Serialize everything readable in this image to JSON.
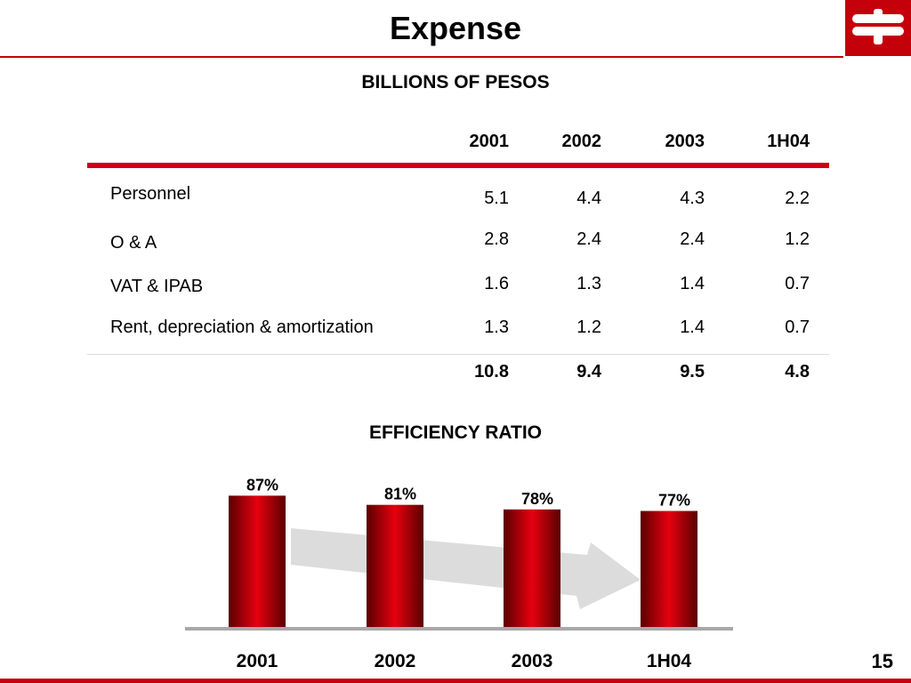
{
  "title": "Expense",
  "page_number": "15",
  "colors": {
    "brand_red": "#c4000b",
    "bar_dark": "#5a0000",
    "bar_light": "#e6000f",
    "arrow": "#dcdcdc"
  },
  "logo": {
    "icon": "bank-logo-icon"
  },
  "table": {
    "subtitle": "BILLIONS OF PESOS",
    "columns": [
      "2001",
      "2002",
      "2003",
      "1H04"
    ],
    "rows": [
      {
        "label": "Personnel",
        "values": [
          "5.1",
          "4.4",
          "4.3",
          "2.2"
        ]
      },
      {
        "label": "O & A",
        "values": [
          "2.8",
          "2.4",
          "2.4",
          "1.2"
        ]
      },
      {
        "label": "VAT & IPAB",
        "values": [
          "1.6",
          "1.3",
          "1.4",
          "0.7"
        ]
      },
      {
        "label": "Rent, depreciation & amortization",
        "values": [
          "1.3",
          "1.2",
          "1.4",
          "0.7"
        ]
      }
    ],
    "totals": [
      "10.8",
      "9.4",
      "9.5",
      "4.8"
    ]
  },
  "chart_data": {
    "type": "bar",
    "title": "EFFICIENCY RATIO",
    "categories": [
      "2001",
      "2002",
      "2003",
      "1H04"
    ],
    "values": [
      87,
      81,
      78,
      77
    ],
    "value_labels": [
      "87%",
      "81%",
      "78%",
      "77%"
    ],
    "unit": "%",
    "decoration": "downward trend arrow behind bars"
  }
}
